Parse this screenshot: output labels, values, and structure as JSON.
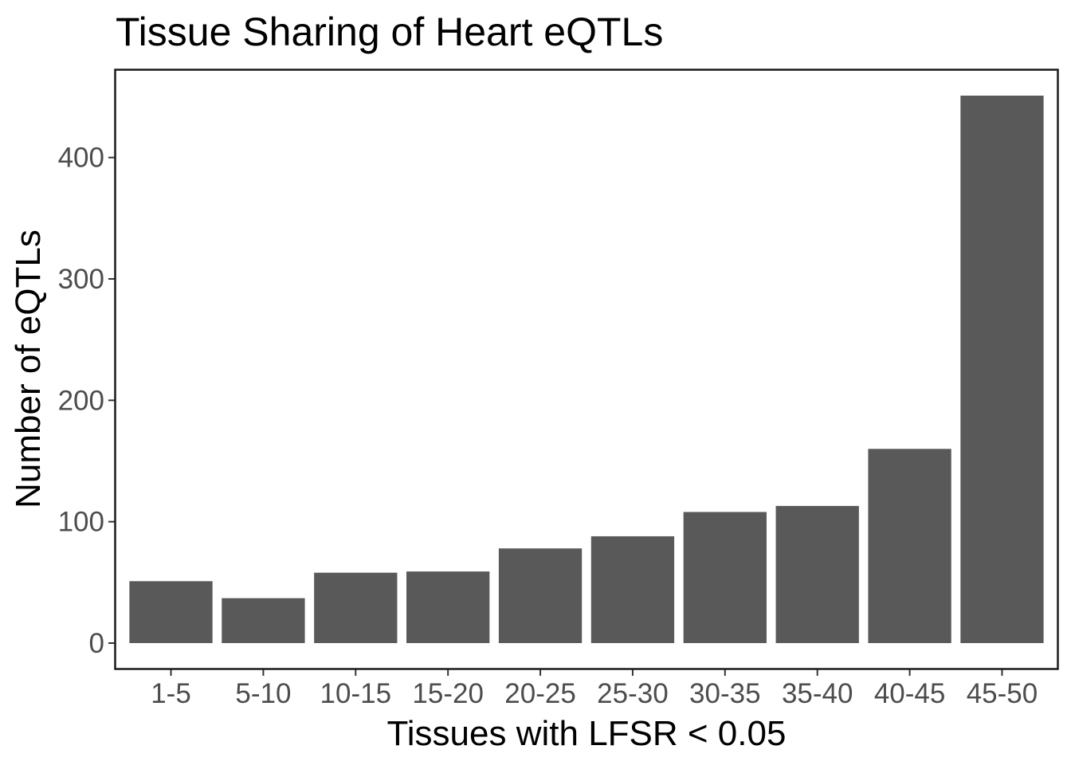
{
  "chart_data": {
    "type": "bar",
    "title": "Tissue Sharing of Heart eQTLs",
    "xlabel": "Tissues with LFSR < 0.05",
    "ylabel": "Number of eQTLs",
    "categories": [
      "1-5",
      "5-10",
      "10-15",
      "15-20",
      "20-25",
      "25-30",
      "30-35",
      "35-40",
      "40-45",
      "45-50"
    ],
    "values": [
      51,
      37,
      58,
      59,
      78,
      88,
      108,
      113,
      160,
      451
    ],
    "ylim": [
      -21,
      472
    ],
    "yticks": [
      0,
      100,
      200,
      300,
      400
    ],
    "grid": false,
    "legend": "none",
    "colors": {
      "bar": "#595959",
      "axis_text": "#4d4d4d",
      "frame": "#1a1a1a",
      "title": "#000000"
    }
  }
}
